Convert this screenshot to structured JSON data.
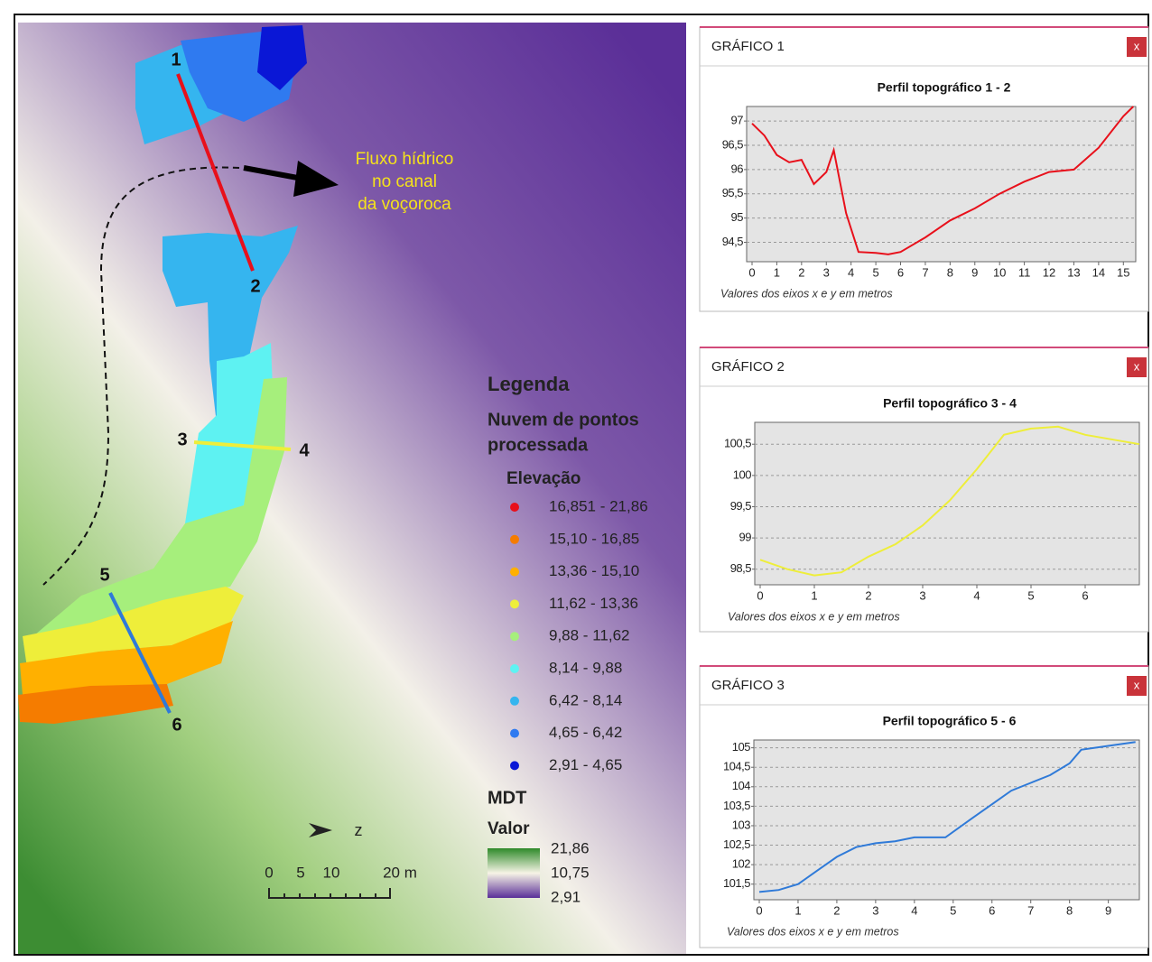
{
  "map": {
    "annotation": [
      "Fluxo hídrico",
      "no canal",
      "da voçoroca"
    ],
    "points": [
      "1",
      "2",
      "3",
      "4",
      "5",
      "6"
    ],
    "north": "z",
    "scale": [
      "0",
      "5",
      "10",
      "20 m"
    ]
  },
  "legend": {
    "title": "Legenda",
    "subtitle": [
      "Nuvem de pontos",
      "processada"
    ],
    "elevation_title": "Elevação",
    "classes": [
      {
        "label": "16,851 - 21,86",
        "color": "#e8101b"
      },
      {
        "label": "15,10 - 16,85",
        "color": "#f57c00"
      },
      {
        "label": "13,36 - 15,10",
        "color": "#ffb000"
      },
      {
        "label": "11,62 - 13,36",
        "color": "#eeee3a"
      },
      {
        "label": "9,88 - 11,62",
        "color": "#a6ef7c"
      },
      {
        "label": "8,14 - 9,88",
        "color": "#5ef2f2"
      },
      {
        "label": "6,42 - 8,14",
        "color": "#35b5ef"
      },
      {
        "label": "4,65 - 6,42",
        "color": "#2f7af0"
      },
      {
        "label": "2,91 - 4,65",
        "color": "#0a17d6"
      }
    ],
    "mdt_title": "MDT",
    "value_title": "Valor",
    "ramp": [
      "21,86",
      "10,75",
      "2,91"
    ]
  },
  "windows": [
    {
      "title": "GRÁFICO 1",
      "close": "x"
    },
    {
      "title": "GRÁFICO 2",
      "close": "x"
    },
    {
      "title": "GRÁFICO 3",
      "close": "x"
    }
  ],
  "chart_data": [
    {
      "type": "line",
      "title": "Perfil topográfico 1 - 2",
      "x_label": "Valores dos eixos x e y em metros",
      "color": "#e8101b",
      "grid": true,
      "x": [
        0,
        0.5,
        1,
        1.5,
        2,
        2.5,
        3,
        3.3,
        3.8,
        4.3,
        5,
        5.5,
        6,
        7,
        8,
        9,
        10,
        11,
        12,
        13,
        14,
        15,
        15.4
      ],
      "values": [
        96.95,
        96.7,
        96.3,
        96.15,
        96.2,
        95.7,
        95.95,
        96.4,
        95.1,
        94.3,
        94.28,
        94.25,
        94.3,
        94.6,
        94.95,
        95.2,
        95.5,
        95.75,
        95.95,
        96.0,
        96.45,
        97.1,
        97.3
      ],
      "xlim": [
        0,
        15.5
      ],
      "xticks": [
        0,
        1,
        2,
        3,
        4,
        5,
        6,
        7,
        8,
        9,
        10,
        11,
        12,
        13,
        14,
        15
      ],
      "ylim": [
        94.1,
        97.3
      ],
      "yticks": [
        {
          "value": 94.5,
          "label": "94,5"
        },
        95,
        {
          "value": 95.5,
          "label": "95,5"
        },
        96,
        {
          "value": 96.5,
          "label": "96,5"
        },
        97
      ]
    },
    {
      "type": "line",
      "title": "Perfil topográfico 3 - 4",
      "x_label": "Valores dos eixos x e y em metros",
      "color": "#eeee3a",
      "grid": true,
      "x": [
        0,
        0.5,
        1,
        1.5,
        2,
        2.5,
        3,
        3.5,
        4,
        4.5,
        5,
        5.5,
        6,
        7
      ],
      "values": [
        98.65,
        98.5,
        98.4,
        98.45,
        98.7,
        98.9,
        99.2,
        99.6,
        100.1,
        100.65,
        100.75,
        100.78,
        100.65,
        100.5
      ],
      "xlim": [
        0,
        7
      ],
      "xticks": [
        0,
        1,
        2,
        3,
        4,
        5,
        6
      ],
      "ylim": [
        98.25,
        100.85
      ],
      "yticks": [
        {
          "value": 98.5,
          "label": "98,5"
        },
        99,
        {
          "value": 99.5,
          "label": "99,5"
        },
        100,
        {
          "value": 100.5,
          "label": "100,5"
        }
      ]
    },
    {
      "type": "line",
      "title": "Perfil topográfico 5 - 6",
      "x_label": "Valores dos eixos x e y em metros",
      "color": "#2f7ad8",
      "grid": true,
      "x": [
        0,
        0.5,
        1,
        1.5,
        2,
        2.5,
        3,
        3.5,
        4,
        4.8,
        5.5,
        6,
        6.5,
        7,
        7.5,
        8,
        8.3,
        9,
        9.7
      ],
      "values": [
        101.3,
        101.35,
        101.5,
        101.85,
        102.2,
        102.45,
        102.55,
        102.6,
        102.7,
        102.7,
        103.2,
        103.55,
        103.9,
        104.1,
        104.3,
        104.6,
        104.95,
        105.05,
        105.15
      ],
      "xlim": [
        0,
        9.8
      ],
      "xticks": [
        0,
        1,
        2,
        3,
        4,
        5,
        6,
        7,
        8,
        9
      ],
      "ylim": [
        101.1,
        105.2
      ],
      "yticks": [
        {
          "value": 101.5,
          "label": "101,5"
        },
        102,
        {
          "value": 102.5,
          "label": "102,5"
        },
        103,
        {
          "value": 103.5,
          "label": "103,5"
        },
        104,
        {
          "value": 104.5,
          "label": "104,5"
        },
        105
      ]
    }
  ]
}
